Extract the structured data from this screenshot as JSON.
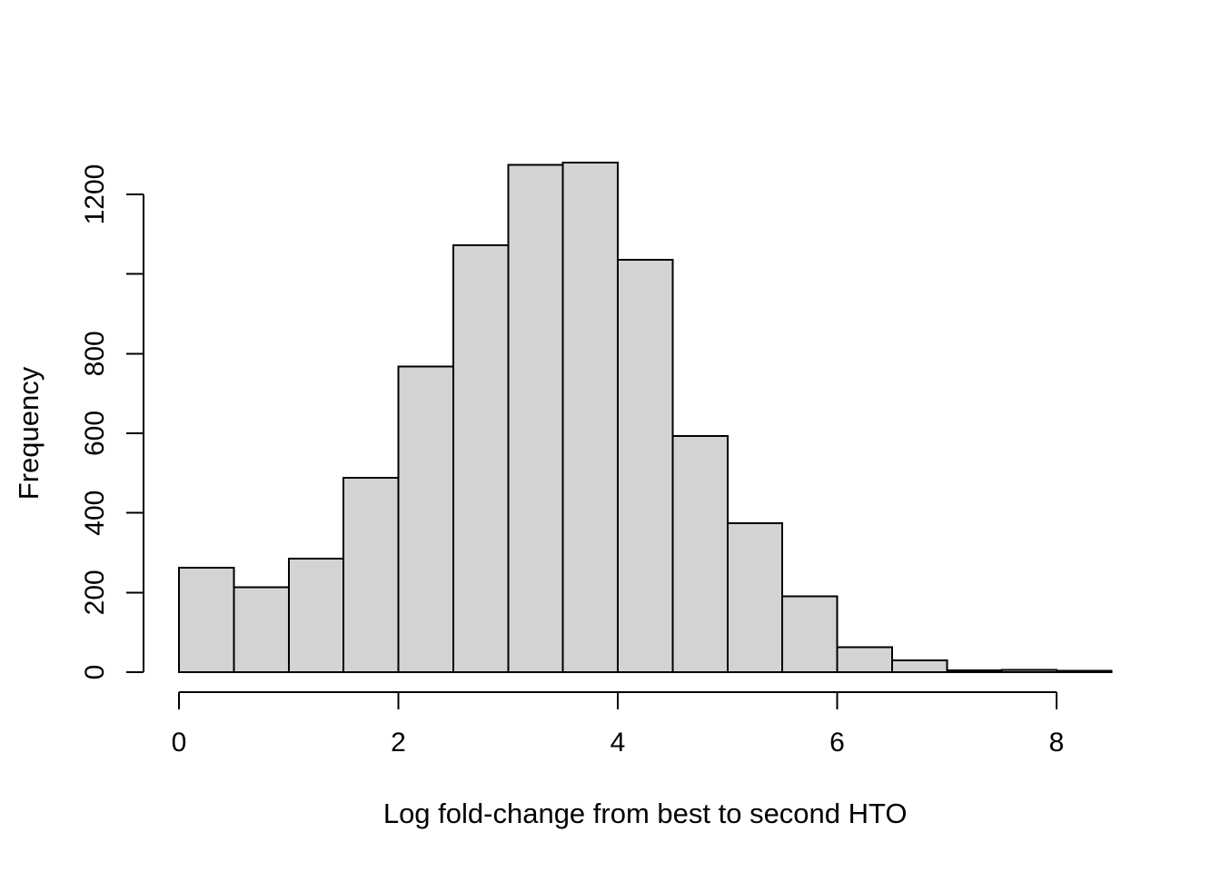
{
  "figure": {
    "background": "#ffffff"
  },
  "chart_data": {
    "type": "bar",
    "subtype": "histogram",
    "title": "",
    "xlabel": "Log fold-change from best to second HTO",
    "ylabel": "Frequency",
    "bin_breaks": [
      0,
      0.5,
      1,
      1.5,
      2,
      2.5,
      3,
      3.5,
      4,
      4.5,
      5,
      5.5,
      6,
      6.5,
      7,
      7.5,
      8,
      8.5
    ],
    "counts": [
      262,
      213,
      285,
      488,
      768,
      1072,
      1274,
      1280,
      1036,
      593,
      374,
      190,
      63,
      30,
      4,
      6,
      3
    ],
    "x_ticks": [
      {
        "v": 0,
        "label": "0"
      },
      {
        "v": 2,
        "label": "2"
      },
      {
        "v": 4,
        "label": "4"
      },
      {
        "v": 6,
        "label": "6"
      },
      {
        "v": 8,
        "label": "8"
      }
    ],
    "y_ticks": [
      {
        "v": 0,
        "label": "0"
      },
      {
        "v": 200,
        "label": "200"
      },
      {
        "v": 400,
        "label": "400"
      },
      {
        "v": 600,
        "label": "600"
      },
      {
        "v": 800,
        "label": "800"
      },
      {
        "v": 1000,
        "label": ""
      },
      {
        "v": 1200,
        "label": "1200"
      }
    ],
    "xlim": [
      0,
      8.5
    ],
    "ylim": [
      0,
      1200
    ],
    "grid": false,
    "legend": null,
    "colors": {
      "bar_fill": "#d3d3d3",
      "bar_border": "#000000",
      "axis": "#000000",
      "text": "#000000"
    }
  }
}
